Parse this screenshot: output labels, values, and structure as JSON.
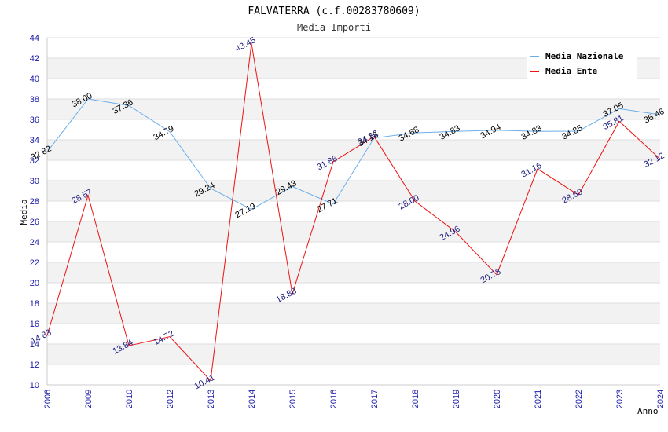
{
  "chart_data": {
    "type": "line",
    "title": "FALVATERRA (c.f.00283780609)",
    "subtitle": "Media Importi",
    "xlabel": "Anno",
    "ylabel": "Media",
    "ylim": [
      10,
      44
    ],
    "y_ticks": [
      10,
      12,
      14,
      16,
      18,
      20,
      22,
      24,
      26,
      28,
      30,
      32,
      34,
      36,
      38,
      40,
      42,
      44
    ],
    "categories": [
      "2006",
      "2009",
      "2010",
      "2012",
      "2013",
      "2014",
      "2015",
      "2016",
      "2017",
      "2018",
      "2019",
      "2020",
      "2021",
      "2022",
      "2023",
      "2024"
    ],
    "series": [
      {
        "name": "Media Nazionale",
        "color": "#6aaeea",
        "values": [
          32.82,
          38.0,
          37.36,
          34.79,
          29.24,
          27.19,
          29.43,
          27.71,
          34.18,
          34.68,
          34.83,
          34.94,
          34.83,
          34.85,
          37.05,
          36.46
        ]
      },
      {
        "name": "Media Ente",
        "color": "#ee1111",
        "values": [
          14.83,
          28.57,
          13.84,
          14.72,
          10.41,
          43.45,
          18.88,
          31.86,
          34.32,
          28.0,
          24.96,
          20.78,
          31.16,
          28.6,
          35.81,
          32.12
        ]
      }
    ],
    "legend_position": "top-right",
    "grid": true
  }
}
